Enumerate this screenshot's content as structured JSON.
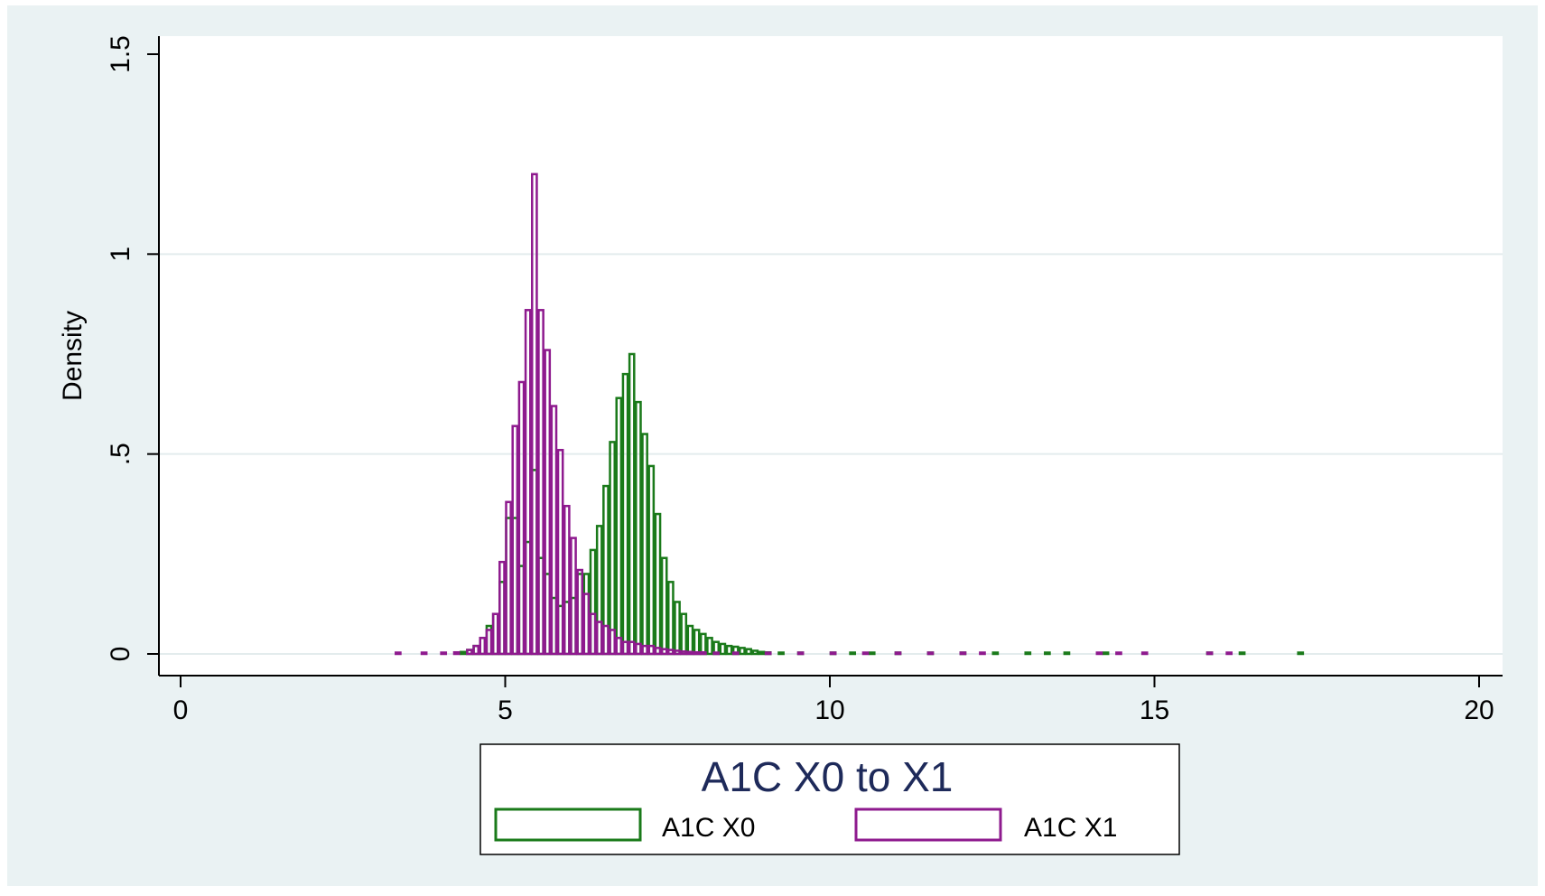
{
  "chart_data": {
    "type": "bar",
    "title": "",
    "xlabel": "",
    "ylabel": "Density",
    "xlim": [
      0,
      20
    ],
    "ylim": [
      0,
      1.5
    ],
    "x_ticks": [
      0,
      5,
      10,
      15,
      20
    ],
    "x_tick_labels": [
      "0",
      "5",
      "10",
      "15",
      "20"
    ],
    "y_ticks": [
      0,
      0.5,
      1,
      1.5
    ],
    "y_tick_labels": [
      "0",
      ".5",
      "1",
      "1.5"
    ],
    "grid": true,
    "bin_width": 0.1,
    "legend": {
      "title": "A1C X0 to X1",
      "placement": "bottom",
      "entries": [
        "A1C X0",
        "A1C X1"
      ]
    },
    "series": [
      {
        "name": "A1C X0",
        "color": "#1a7a1a",
        "bins": [
          [
            4.3,
            0.005
          ],
          [
            4.4,
            0.01
          ],
          [
            4.5,
            0.02
          ],
          [
            4.6,
            0.04
          ],
          [
            4.7,
            0.07
          ],
          [
            4.8,
            0.1
          ],
          [
            4.9,
            0.18
          ],
          [
            5.0,
            0.34
          ],
          [
            5.1,
            0.34
          ],
          [
            5.2,
            0.22
          ],
          [
            5.3,
            0.28
          ],
          [
            5.4,
            0.46
          ],
          [
            5.5,
            0.24
          ],
          [
            5.6,
            0.2
          ],
          [
            5.7,
            0.14
          ],
          [
            5.8,
            0.12
          ],
          [
            5.9,
            0.13
          ],
          [
            6.0,
            0.14
          ],
          [
            6.1,
            0.2
          ],
          [
            6.2,
            0.2
          ],
          [
            6.3,
            0.26
          ],
          [
            6.4,
            0.32
          ],
          [
            6.5,
            0.42
          ],
          [
            6.6,
            0.53
          ],
          [
            6.7,
            0.64
          ],
          [
            6.8,
            0.7
          ],
          [
            6.9,
            0.75
          ],
          [
            7.0,
            0.63
          ],
          [
            7.1,
            0.55
          ],
          [
            7.2,
            0.47
          ],
          [
            7.3,
            0.35
          ],
          [
            7.4,
            0.24
          ],
          [
            7.5,
            0.18
          ],
          [
            7.6,
            0.13
          ],
          [
            7.7,
            0.1
          ],
          [
            7.8,
            0.07
          ],
          [
            7.9,
            0.06
          ],
          [
            8.0,
            0.05
          ],
          [
            8.1,
            0.04
          ],
          [
            8.2,
            0.03
          ],
          [
            8.3,
            0.025
          ],
          [
            8.4,
            0.02
          ],
          [
            8.5,
            0.018
          ],
          [
            8.6,
            0.015
          ],
          [
            8.7,
            0.012
          ],
          [
            8.8,
            0.008
          ],
          [
            8.9,
            0.005
          ],
          [
            9.0,
            0.004
          ],
          [
            9.2,
            0.003
          ],
          [
            9.5,
            0.002
          ],
          [
            10.0,
            0.002
          ],
          [
            10.3,
            0.002
          ],
          [
            10.6,
            0.002
          ],
          [
            11.0,
            0.002
          ],
          [
            11.5,
            0.002
          ],
          [
            12.0,
            0.002
          ],
          [
            12.5,
            0.002
          ],
          [
            13.0,
            0.002
          ],
          [
            13.3,
            0.002
          ],
          [
            13.6,
            0.002
          ],
          [
            14.2,
            0.002
          ],
          [
            15.8,
            0.002
          ],
          [
            16.3,
            0.002
          ],
          [
            17.2,
            0.002
          ]
        ]
      },
      {
        "name": "A1C X1",
        "color": "#8e1a8e",
        "bins": [
          [
            3.3,
            0.002
          ],
          [
            3.7,
            0.002
          ],
          [
            4.0,
            0.003
          ],
          [
            4.2,
            0.004
          ],
          [
            4.4,
            0.01
          ],
          [
            4.5,
            0.02
          ],
          [
            4.6,
            0.04
          ],
          [
            4.7,
            0.06
          ],
          [
            4.8,
            0.1
          ],
          [
            4.9,
            0.23
          ],
          [
            5.0,
            0.38
          ],
          [
            5.1,
            0.57
          ],
          [
            5.2,
            0.68
          ],
          [
            5.3,
            0.86
          ],
          [
            5.4,
            1.2
          ],
          [
            5.5,
            0.86
          ],
          [
            5.6,
            0.76
          ],
          [
            5.7,
            0.62
          ],
          [
            5.8,
            0.51
          ],
          [
            5.9,
            0.37
          ],
          [
            6.0,
            0.29
          ],
          [
            6.1,
            0.21
          ],
          [
            6.2,
            0.15
          ],
          [
            6.3,
            0.1
          ],
          [
            6.4,
            0.08
          ],
          [
            6.5,
            0.07
          ],
          [
            6.6,
            0.06
          ],
          [
            6.7,
            0.04
          ],
          [
            6.8,
            0.03
          ],
          [
            6.9,
            0.03
          ],
          [
            7.0,
            0.025
          ],
          [
            7.1,
            0.02
          ],
          [
            7.2,
            0.02
          ],
          [
            7.3,
            0.015
          ],
          [
            7.4,
            0.012
          ],
          [
            7.5,
            0.01
          ],
          [
            7.6,
            0.008
          ],
          [
            7.7,
            0.006
          ],
          [
            7.8,
            0.005
          ],
          [
            7.9,
            0.004
          ],
          [
            8.0,
            0.004
          ],
          [
            8.2,
            0.003
          ],
          [
            8.5,
            0.002
          ],
          [
            9.0,
            0.002
          ],
          [
            9.5,
            0.002
          ],
          [
            10.0,
            0.002
          ],
          [
            10.5,
            0.002
          ],
          [
            11.0,
            0.002
          ],
          [
            11.5,
            0.002
          ],
          [
            12.0,
            0.002
          ],
          [
            12.3,
            0.002
          ],
          [
            14.1,
            0.002
          ],
          [
            14.4,
            0.002
          ],
          [
            14.8,
            0.002
          ],
          [
            15.8,
            0.002
          ],
          [
            16.1,
            0.002
          ]
        ]
      }
    ]
  }
}
